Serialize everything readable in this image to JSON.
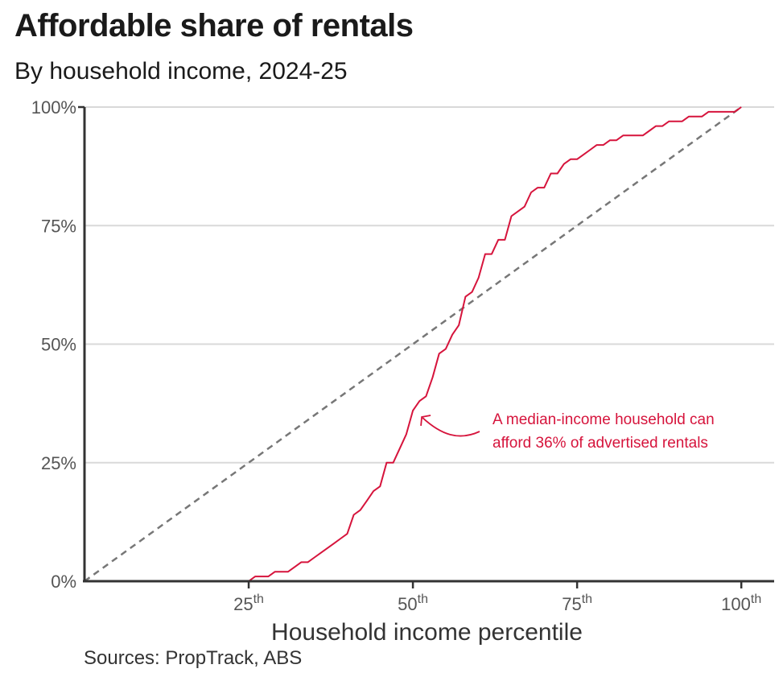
{
  "title": "Affordable share of rentals",
  "subtitle": "By household income, 2024-25",
  "source": "Sources: PropTrack, ABS",
  "colors": {
    "series": "#d6143c",
    "reference": "#777777",
    "grid": "#d9d9d9",
    "axis": "#333333"
  },
  "chart_data": {
    "type": "line",
    "title": "Affordable share of rentals",
    "subtitle": "By household income, 2024-25",
    "xlabel": "Household income percentile",
    "ylabel": "",
    "xlim": [
      0,
      105
    ],
    "ylim": [
      0,
      100
    ],
    "grid": true,
    "x_ticks": [
      {
        "value": 25,
        "label": "25",
        "sup": "th"
      },
      {
        "value": 50,
        "label": "50",
        "sup": "th"
      },
      {
        "value": 75,
        "label": "75",
        "sup": "th"
      },
      {
        "value": 100,
        "label": "100",
        "sup": "th"
      }
    ],
    "y_ticks": [
      {
        "value": 0,
        "label": "0%"
      },
      {
        "value": 25,
        "label": "25%"
      },
      {
        "value": 50,
        "label": "50%"
      },
      {
        "value": 75,
        "label": "75%"
      },
      {
        "value": 100,
        "label": "100%"
      }
    ],
    "series": [
      {
        "style": "solid",
        "x": [
          25,
          26,
          28,
          29,
          31,
          32,
          33,
          34,
          35,
          36,
          37,
          38,
          39,
          40,
          41,
          42,
          43,
          44,
          45,
          46,
          47,
          48,
          49,
          50,
          51,
          52,
          53,
          54,
          55,
          56,
          57,
          58,
          59,
          60,
          61,
          62,
          63,
          64,
          65,
          66,
          67,
          68,
          69,
          70,
          71,
          72,
          73,
          74,
          75,
          76,
          77,
          78,
          79,
          80,
          81,
          82,
          83,
          84,
          85,
          86,
          87,
          88,
          89,
          90,
          91,
          92,
          93,
          94,
          95,
          96,
          97,
          98,
          99,
          100
        ],
        "y": [
          0,
          1,
          1,
          2,
          2,
          3,
          4,
          4,
          5,
          6,
          7,
          8,
          9,
          10,
          14,
          15,
          17,
          19,
          20,
          25,
          25,
          28,
          31,
          36,
          38,
          39,
          43,
          48,
          49,
          52,
          54,
          60,
          61,
          64,
          69,
          69,
          72,
          72,
          77,
          78,
          79,
          82,
          83,
          83,
          86,
          86,
          88,
          89,
          89,
          90,
          91,
          92,
          92,
          93,
          93,
          94,
          94,
          94,
          94,
          95,
          96,
          96,
          97,
          97,
          97,
          98,
          98,
          98,
          99,
          99,
          99,
          99,
          99,
          100
        ]
      },
      {
        "style": "dashed",
        "x": [
          0,
          100
        ],
        "y": [
          0,
          100
        ]
      }
    ],
    "annotation": {
      "lines": [
        "A median-income household can",
        "afford 36% of advertised rentals"
      ],
      "target_x": 50,
      "target_y": 36
    }
  }
}
